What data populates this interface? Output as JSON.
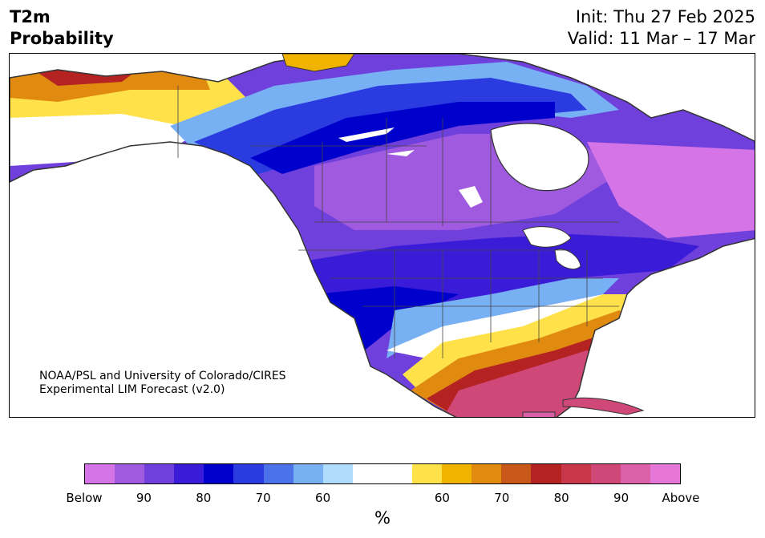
{
  "header": {
    "variable": "T2m",
    "product": "Probability",
    "init": "Init: Thu 27 Feb 2025",
    "valid": "Valid: 11 Mar – 17 Mar"
  },
  "credit": {
    "line1": "NOAA/PSL and University of Colorado/CIRES",
    "line2": "Experimental LIM Forecast (v2.0)"
  },
  "colorbar": {
    "colors": [
      "#d474e6",
      "#a05ae0",
      "#7040dc",
      "#3a1cd8",
      "#0000cc",
      "#2a3ce0",
      "#4c72ea",
      "#78b0f4",
      "#b0dcfc",
      "#ffffff",
      "#ffffff",
      "#ffe24a",
      "#f0b400",
      "#e08a10",
      "#c8581a",
      "#b42222",
      "#c8384a",
      "#d04878",
      "#dc60a8",
      "#e676d8"
    ],
    "labels": [
      "Below",
      "90",
      "80",
      "70",
      "60",
      "60",
      "70",
      "80",
      "90",
      "Above"
    ],
    "label_slots": [
      0,
      2,
      4,
      6,
      8,
      12,
      14,
      16,
      18,
      20
    ],
    "unit": "%"
  },
  "map": {
    "region": "North America",
    "below_normal_color": "#3a1cd8",
    "above_normal_color": "#c8384a"
  }
}
